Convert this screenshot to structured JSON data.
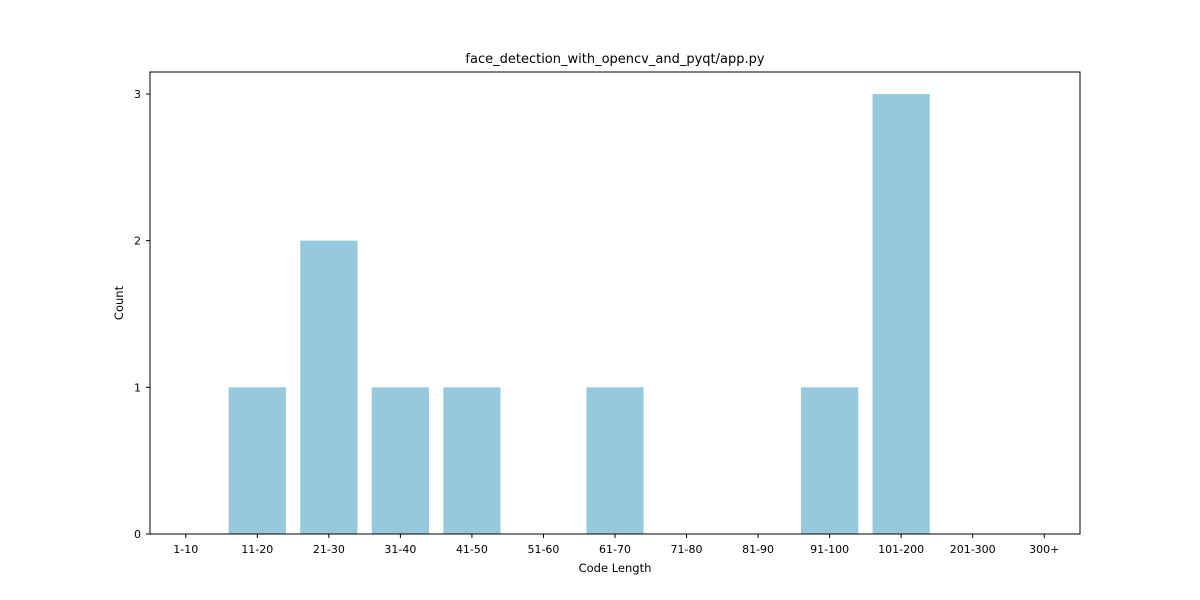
{
  "chart_data": {
    "type": "bar",
    "title": "face_detection_with_opencv_and_pyqt/app.py",
    "xlabel": "Code Length",
    "ylabel": "Count",
    "categories": [
      "1-10",
      "11-20",
      "21-30",
      "31-40",
      "41-50",
      "51-60",
      "61-70",
      "71-80",
      "81-90",
      "91-100",
      "101-200",
      "201-300",
      "300+"
    ],
    "values": [
      0,
      1,
      2,
      1,
      1,
      0,
      1,
      0,
      0,
      1,
      3,
      0,
      0
    ],
    "ylim": [
      0,
      3.15
    ],
    "yticks": [
      0,
      1,
      2,
      3
    ],
    "bar_color": "#96c9dc",
    "grid": false,
    "legend": false
  }
}
